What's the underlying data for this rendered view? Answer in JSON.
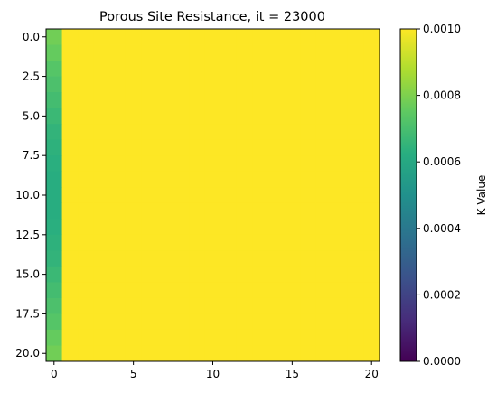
{
  "chart_data": {
    "type": "heatmap",
    "title": "Porous Site Resistance, it = 23000",
    "xlabel": "",
    "ylabel": "",
    "grid": false,
    "colormap": "viridis",
    "extent_x": [
      -0.5,
      20.5
    ],
    "extent_y": [
      -0.5,
      20.5
    ],
    "y_inverted": true,
    "xticks": [
      0,
      5,
      10,
      15,
      20
    ],
    "xtick_labels": [
      "0",
      "5",
      "10",
      "15",
      "20"
    ],
    "yticks": [
      0,
      2.5,
      5,
      7.5,
      10,
      12.5,
      15,
      17.5,
      20
    ],
    "ytick_labels": [
      "0.0",
      "2.5",
      "5.0",
      "7.5",
      "10.0",
      "12.5",
      "15.0",
      "17.5",
      "20.0"
    ],
    "nrows": 21,
    "ncols": 21,
    "column0_values": [
      0.00078,
      0.00076,
      0.00073,
      0.00071,
      0.00069,
      0.00067,
      0.00065,
      0.00064,
      0.00063,
      0.00062,
      0.00062,
      0.00062,
      0.00063,
      0.00064,
      0.00065,
      0.00067,
      0.00069,
      0.00071,
      0.00073,
      0.00076,
      0.00078
    ],
    "other_columns_value": 0.001,
    "colorbar": {
      "label": "K Value",
      "min": 0.0,
      "max": 0.001,
      "ticks": [
        0.0,
        0.0002,
        0.0004,
        0.0006,
        0.0008,
        0.001
      ],
      "tick_labels": [
        "0.0000",
        "0.0002",
        "0.0004",
        "0.0006",
        "0.0008",
        "0.0010"
      ]
    }
  }
}
